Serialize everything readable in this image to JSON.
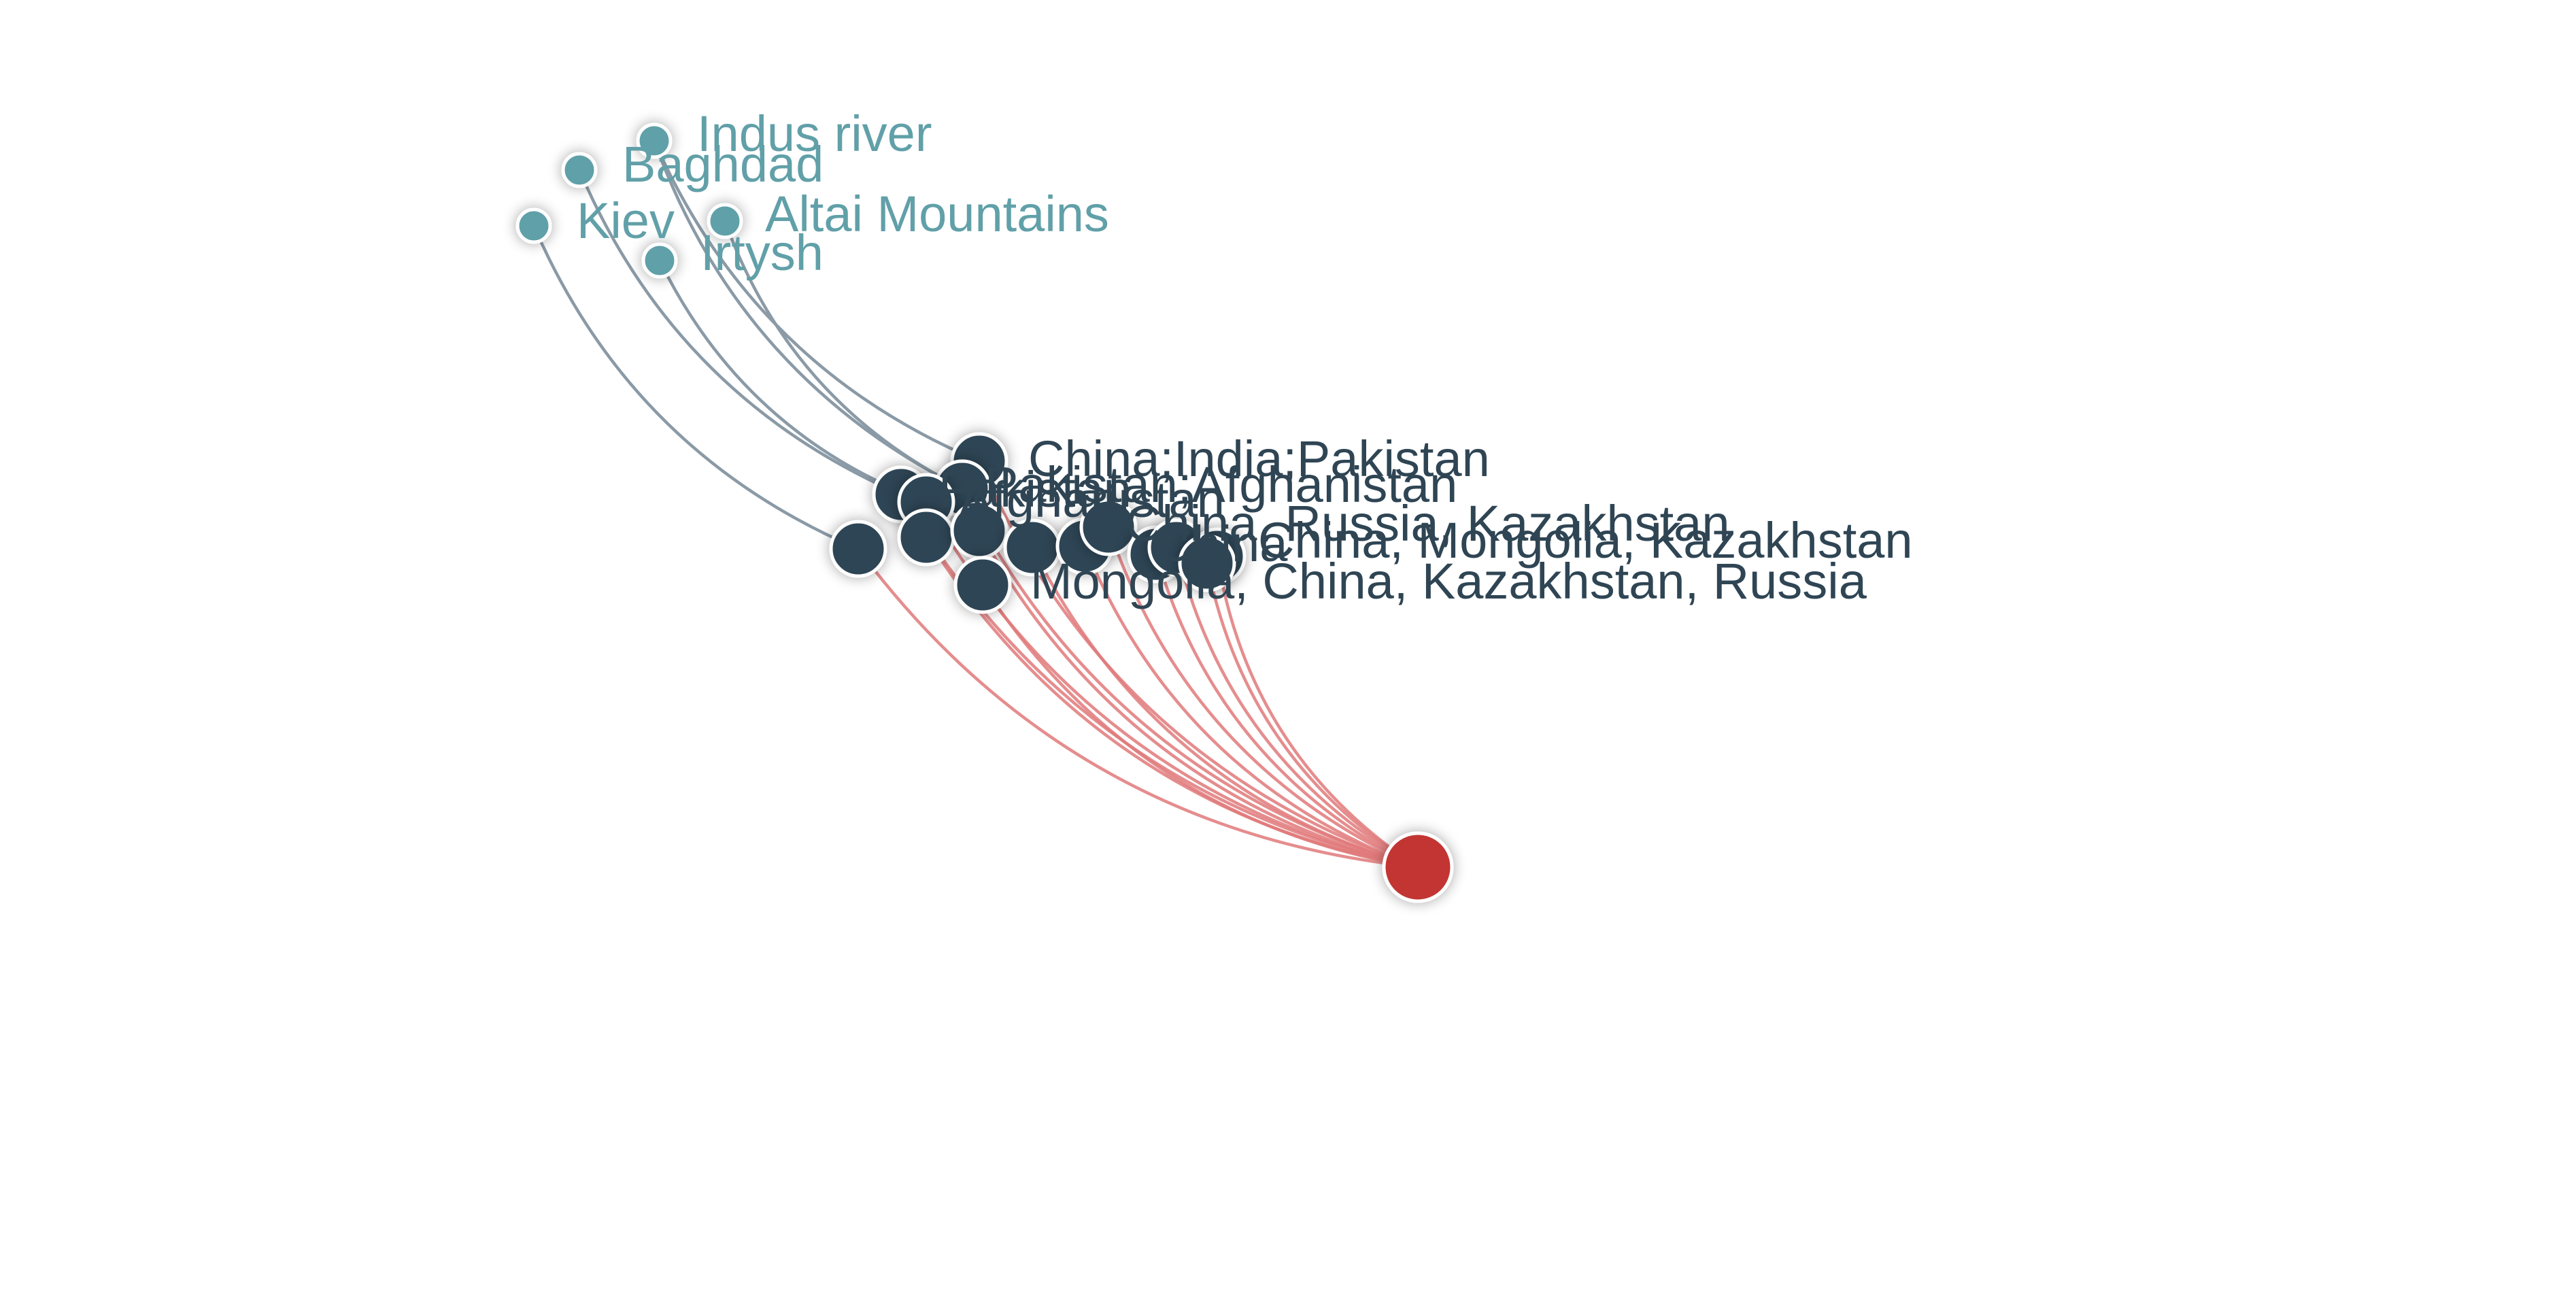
{
  "graph": {
    "colors": {
      "hub": "#c23531",
      "hub_edge": "#e0797a",
      "country": "#2f4554",
      "place": "#61a0a8",
      "place_edge": "#8a9aa6"
    },
    "hub": {
      "id": "hub",
      "label": ""
    },
    "places": [
      {
        "id": "indus",
        "label": "Indus river"
      },
      {
        "id": "baghdad",
        "label": "Baghdad"
      },
      {
        "id": "kiev",
        "label": "Kiev"
      },
      {
        "id": "altai",
        "label": "Altai Mountains"
      },
      {
        "id": "irtysh",
        "label": "Irtysh"
      }
    ],
    "countries": [
      {
        "id": "c1",
        "label": "China;India;Pakistan"
      },
      {
        "id": "c2",
        "label": "Pakistan;Afghanistan"
      },
      {
        "id": "c3",
        "label": "Pakistan"
      },
      {
        "id": "c4",
        "label": "Afghanistan"
      },
      {
        "id": "c5",
        "label": ""
      },
      {
        "id": "c6",
        "label": ""
      },
      {
        "id": "c7",
        "label": ""
      },
      {
        "id": "c8",
        "label": ""
      },
      {
        "id": "c9",
        "label": ""
      },
      {
        "id": "c10",
        "label": "China, Russia, Kazakhstan"
      },
      {
        "id": "c11",
        "label": ""
      },
      {
        "id": "c12",
        "label": ""
      },
      {
        "id": "c13",
        "label": "China, Mongolia, Kazakhstan"
      },
      {
        "id": "c14",
        "label": "China"
      },
      {
        "id": "c15",
        "label": "Mongolia, China, Kazakhstan, Russia"
      }
    ],
    "place_links": [
      [
        "indus",
        "c1"
      ],
      [
        "indus",
        "c2"
      ],
      [
        "baghdad",
        "c3"
      ],
      [
        "kiev",
        "c5"
      ],
      [
        "irtysh",
        "c4"
      ],
      [
        "altai",
        "c2"
      ]
    ]
  }
}
